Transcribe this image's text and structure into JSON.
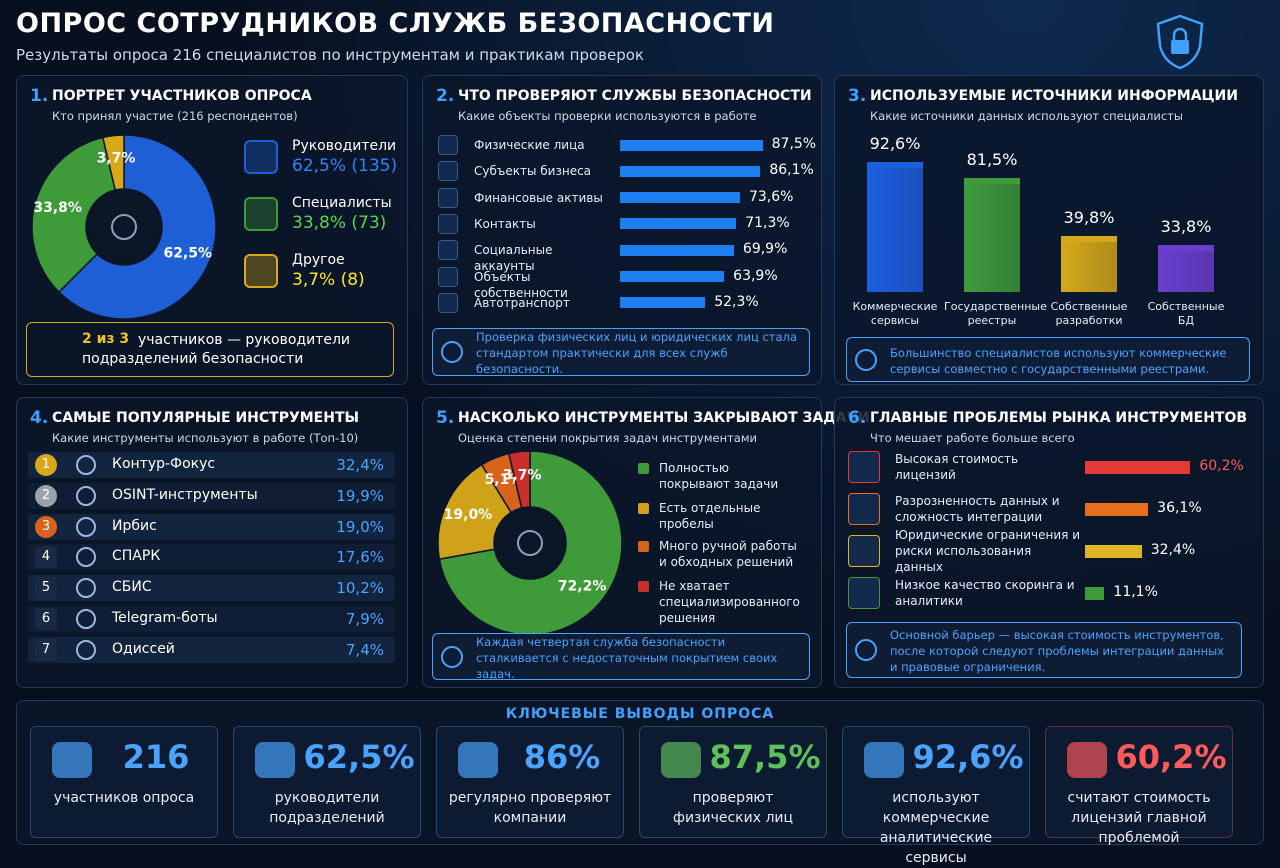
{
  "header": {
    "title": "ОПРОС СОТРУДНИКОВ СЛУЖБ БЕЗОПАСНОСТИ",
    "subtitle": "Результаты опроса 216 специалистов по инструментам и практикам проверок"
  },
  "chart_data": [
    {
      "type": "donut",
      "number": "1.",
      "title": "ПОРТРЕТ УЧАСТНИКОВ ОПРОСА",
      "subtitle": "Кто принял участие (216 респондентов)",
      "categories": [
        "Руководители",
        "Специалисты",
        "Другое"
      ],
      "values": [
        62.5,
        33.8,
        3.7
      ],
      "value_labels": [
        "62,5%",
        "33,8%",
        "3,7%"
      ],
      "legend_labels": [
        "62,5% (135)",
        "33,8% (73)",
        "3,7% (8)"
      ],
      "colors": [
        "#1f5fd6",
        "#3f9a3a",
        "#d9a81a"
      ],
      "note_highlight": "2 из 3",
      "note": "участников — руководители подразделений безопасности"
    },
    {
      "type": "hbar",
      "number": "2.",
      "title": "ЧТО ПРОВЕРЯЮТ СЛУЖБЫ БЕЗОПАСНОСТИ",
      "subtitle": "Какие объекты проверки используются в работе",
      "categories": [
        "Физические лица",
        "Субъекты бизнеса",
        "Финансовые активы",
        "Контакты",
        "Социальные аккаунты",
        "Объекты собственности",
        "Автотранспорт"
      ],
      "values": [
        87.5,
        86.1,
        73.6,
        71.3,
        69.9,
        63.9,
        52.3
      ],
      "value_labels": [
        "87,5%",
        "86,1%",
        "73,6%",
        "71,3%",
        "69,9%",
        "63,9%",
        "52,3%"
      ],
      "xlim": [
        0,
        100
      ],
      "color": "#1e7ff0",
      "note": "Проверка физических лиц и юридических лиц стала стандартом практически для всех служб безопасности."
    },
    {
      "type": "bar",
      "number": "3.",
      "title": "ИСПОЛЬЗУЕМЫЕ ИСТОЧНИКИ ИНФОРМАЦИИ",
      "subtitle": "Какие источники данных используют специалисты",
      "categories": [
        "Коммерческие сервисы",
        "Государственные реестры",
        "Собственные разработки",
        "Собственные БД"
      ],
      "values": [
        92.6,
        81.5,
        39.8,
        33.8
      ],
      "value_labels": [
        "92,6%",
        "81,5%",
        "39,8%",
        "33,8%"
      ],
      "ylim": [
        0,
        100
      ],
      "colors": [
        "#1d5fe0",
        "#3e9a3c",
        "#d6a919",
        "#6a3fd0"
      ],
      "note": "Большинство специалистов используют коммерческие сервисы совместно с государственными реестрами."
    },
    {
      "type": "donut",
      "number": "5.",
      "title": "НАСКОЛЬКО ИНСТРУМЕНТЫ ЗАКРЫВАЮТ ЗАДАЧИ",
      "subtitle": "Оценка степени покрытия задач инструментами",
      "categories": [
        "Полностью покрывают задачи",
        "Есть отдельные пробелы",
        "Много ручной работы и обходных решений",
        "Не хватает специализированного решения"
      ],
      "values": [
        72.2,
        19.0,
        5.1,
        3.7
      ],
      "value_labels": [
        "72,2%",
        "19,0%",
        "5,1%",
        "3,7%"
      ],
      "colors": [
        "#3f9a3a",
        "#d0a21a",
        "#d8641c",
        "#c8302c"
      ],
      "note": "Каждая четвертая служба безопасности сталкивается с недостаточным покрытием своих задач."
    },
    {
      "type": "hbar",
      "number": "6.",
      "title": "ГЛАВНЫЕ ПРОБЛЕМЫ РЫНКА ИНСТРУМЕНТОВ",
      "subtitle": "Что мешает работе больше всего",
      "categories": [
        "Высокая стоимость лицензий",
        "Разрозненность данных и сложность интеграции",
        "Юридические ограничения и риски использования данных",
        "Низкое качество скоринга и аналитики"
      ],
      "values": [
        60.2,
        36.1,
        32.4,
        11.1
      ],
      "value_labels": [
        "60,2%",
        "36,1%",
        "32,4%",
        "11,1%"
      ],
      "xlim": [
        0,
        100
      ],
      "colors": [
        "#e23a36",
        "#e86d1c",
        "#e0b523",
        "#3f9a3a"
      ],
      "note": "Основной барьер — высокая стоимость инструментов, после которой следуют проблемы интеграции данных и правовые ограничения."
    }
  ],
  "tools": {
    "number": "4.",
    "title": "САМЫЕ ПОПУЛЯРНЫЕ ИНСТРУМЕНТЫ",
    "subtitle": "Какие инструменты используют в работе (Топ-10)",
    "rows": [
      [
        "1",
        "Контур-Фокус",
        "32,4%"
      ],
      [
        "2",
        "OSINT-инструменты",
        "19,9%"
      ],
      [
        "3",
        "Ирбис",
        "19,0%"
      ],
      [
        "4",
        "СПАРК",
        "17,6%"
      ],
      [
        "5",
        "СБИС",
        "10,2%"
      ],
      [
        "6",
        "Telegram-боты",
        "7,9%"
      ],
      [
        "7",
        "Одиссей",
        "7,4%"
      ]
    ]
  },
  "summary": {
    "title": "КЛЮЧЕВЫЕ ВЫВОДЫ ОПРОСА",
    "cards": [
      {
        "value": "216",
        "label": "участников опроса",
        "color": "#4aa3ff"
      },
      {
        "value": "62,5%",
        "label": "руководители подразделений",
        "color": "#4aa3ff"
      },
      {
        "value": "86%",
        "label": "регулярно проверяют компании",
        "color": "#4aa3ff"
      },
      {
        "value": "87,5%",
        "label": "проверяют физических лиц",
        "color": "#5fbf5a"
      },
      {
        "value": "92,6%",
        "label": "используют коммерческие аналитические сервисы",
        "color": "#4aa3ff"
      },
      {
        "value": "60,2%",
        "label": "считают стоимость лицензий главной проблемой",
        "color": "#ff5a5a"
      }
    ]
  }
}
